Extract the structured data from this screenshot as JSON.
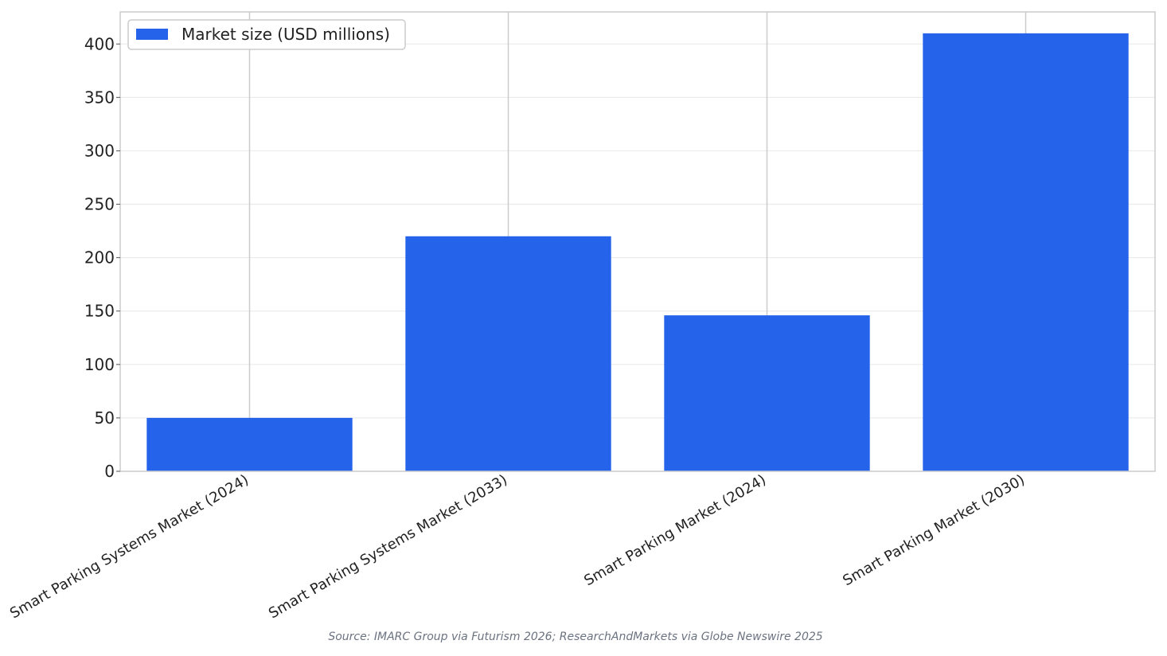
{
  "chart_data": {
    "type": "bar",
    "categories": [
      "Smart Parking Systems Market (2024)",
      "Smart Parking Systems Market (2033)",
      "Smart Parking Market (2024)",
      "Smart Parking Market (2030)"
    ],
    "series": [
      {
        "name": "Market size (USD millions)",
        "values": [
          50,
          220,
          146,
          410
        ],
        "color": "#2563EB"
      }
    ],
    "title": "",
    "xlabel": "",
    "ylabel": "",
    "ylim": [
      0,
      430
    ],
    "yticks": [
      0,
      50,
      100,
      150,
      200,
      250,
      300,
      350,
      400
    ],
    "grid": true,
    "legend_position": "top-left"
  },
  "source_note": "Source: IMARC Group via Futurism 2026; ResearchAndMarkets via Globe Newswire 2025"
}
